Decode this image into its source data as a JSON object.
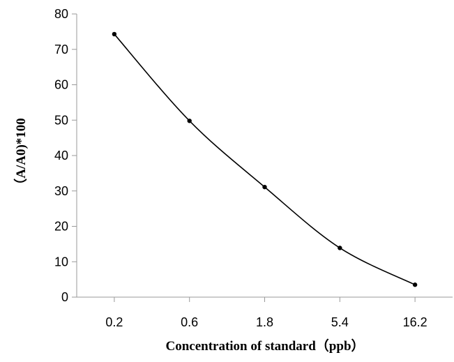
{
  "chart_data": {
    "type": "line",
    "title": "",
    "xlabel": "Concentration of standard（ppb）",
    "ylabel": "（A/A0)*100",
    "categories": [
      "0.2",
      "0.6",
      "1.8",
      "5.4",
      "16.2"
    ],
    "series": [
      {
        "values": [
          74.3,
          49.8,
          31.1,
          13.9,
          3.5
        ]
      }
    ],
    "ylim": [
      0,
      80
    ],
    "yticks": [
      0,
      10,
      20,
      30,
      40,
      50,
      60,
      70,
      80
    ],
    "grid": false,
    "legend": "none",
    "line_color": "#000000",
    "axis_color": "#999999"
  }
}
